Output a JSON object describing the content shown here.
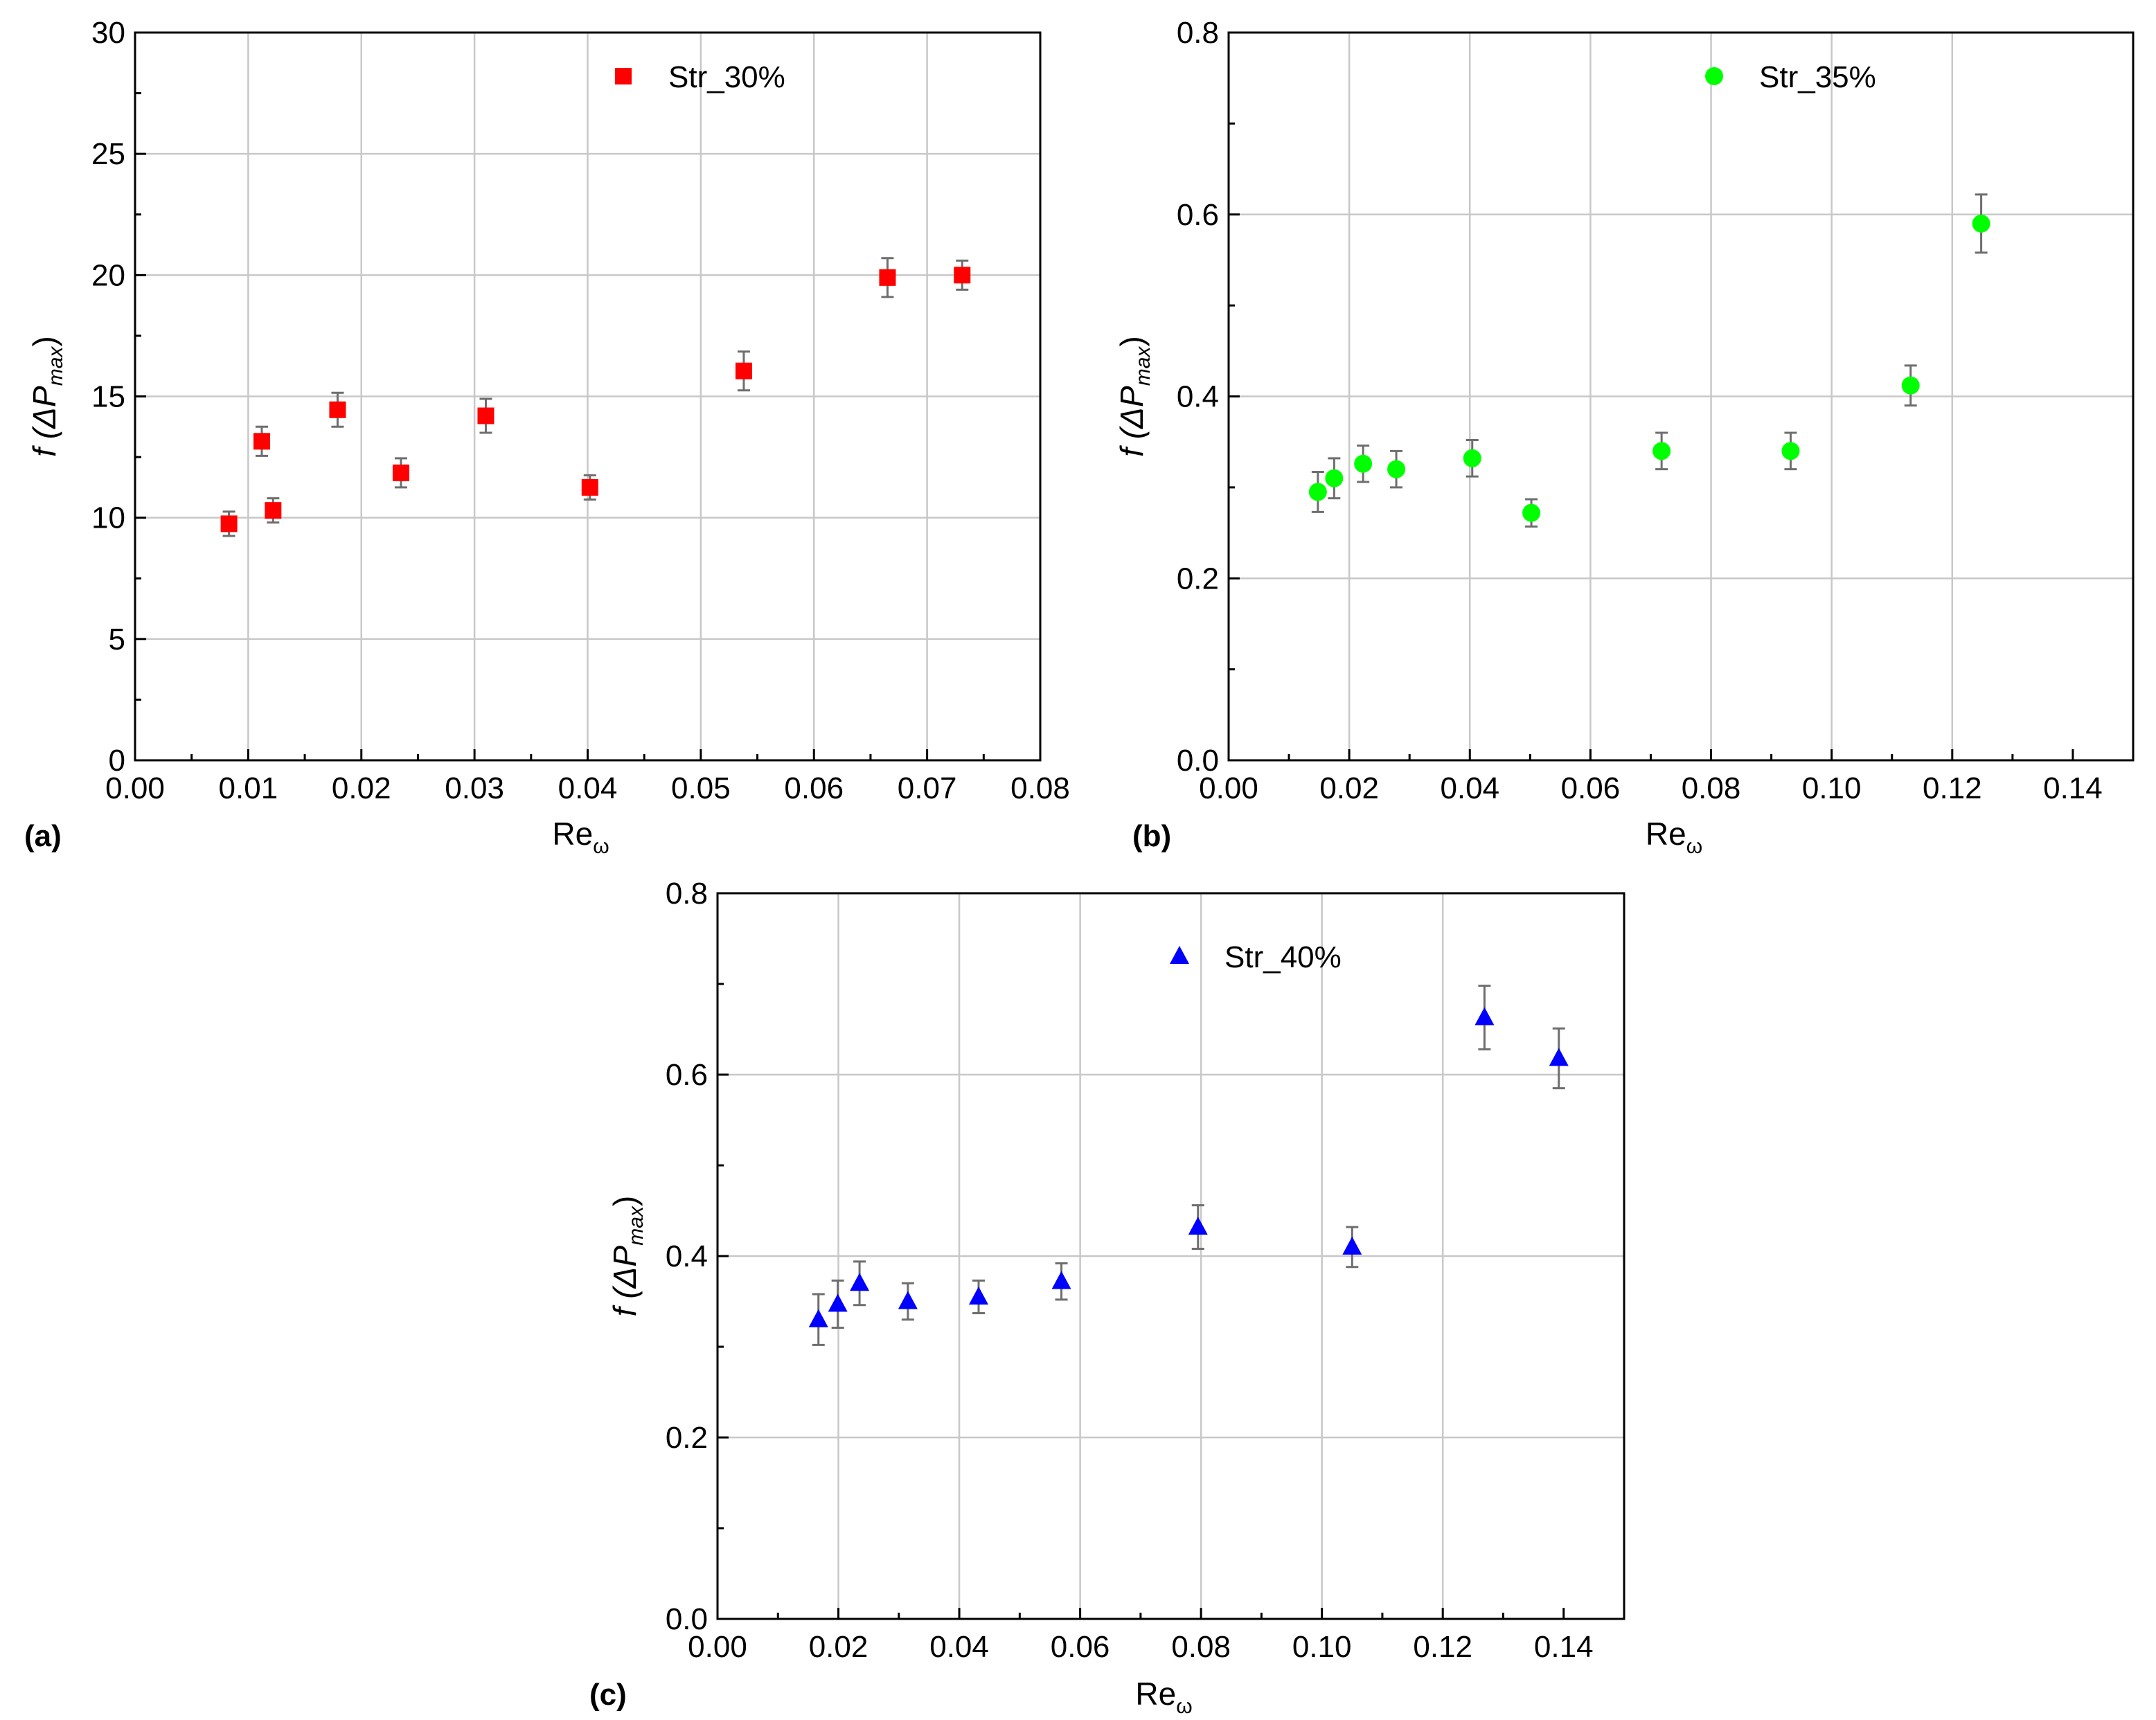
{
  "chart_data": [
    {
      "type": "scatter",
      "panel_label": "(a)",
      "xlabel": "Re",
      "xlabel_sub": "ω",
      "ylabel": "f (ΔP",
      "ylabel_sub": "max",
      "ylabel_close": ")",
      "xlim": [
        0,
        0.08
      ],
      "ylim": [
        0,
        30
      ],
      "xticks": [
        "0.00",
        "0.01",
        "0.02",
        "0.03",
        "0.04",
        "0.05",
        "0.06",
        "0.07",
        "0.08"
      ],
      "yticks": [
        "0",
        "5",
        "10",
        "15",
        "20",
        "25",
        "30"
      ],
      "grid": true,
      "legend_position": "top-center",
      "series": [
        {
          "name": "Str_30%",
          "marker": "square",
          "color": "#ff0000",
          "x": [
            0.0083,
            0.0112,
            0.0122,
            0.0179,
            0.0235,
            0.031,
            0.0402,
            0.0538,
            0.0665,
            0.0731
          ],
          "y": [
            9.75,
            13.15,
            10.3,
            14.45,
            11.85,
            14.2,
            11.25,
            16.05,
            19.9,
            20.0
          ],
          "err": [
            0.5,
            0.6,
            0.5,
            0.7,
            0.6,
            0.7,
            0.5,
            0.8,
            0.8,
            0.6
          ]
        }
      ]
    },
    {
      "type": "scatter",
      "panel_label": "(b)",
      "xlabel": "Re",
      "xlabel_sub": "ω",
      "ylabel": "f (ΔP",
      "ylabel_sub": "max",
      "ylabel_close": ")",
      "xlim": [
        0,
        0.15
      ],
      "ylim": [
        0,
        0.8
      ],
      "xticks": [
        "0.00",
        "0.02",
        "0.04",
        "0.06",
        "0.08",
        "0.10",
        "0.12",
        "0.14"
      ],
      "yticks": [
        "0.0",
        "0.2",
        "0.4",
        "0.6",
        "0.8"
      ],
      "grid": true,
      "legend_position": "top-center",
      "series": [
        {
          "name": "Str_35%",
          "marker": "circle",
          "color": "#00ff00",
          "x": [
            0.0148,
            0.0175,
            0.0223,
            0.0278,
            0.0404,
            0.0502,
            0.0718,
            0.0932,
            0.1131,
            0.1248
          ],
          "y": [
            0.295,
            0.31,
            0.326,
            0.32,
            0.332,
            0.272,
            0.34,
            0.34,
            0.412,
            0.59
          ],
          "err": [
            0.022,
            0.022,
            0.02,
            0.02,
            0.02,
            0.015,
            0.02,
            0.02,
            0.022,
            0.032
          ]
        }
      ]
    },
    {
      "type": "scatter",
      "panel_label": "(c)",
      "xlabel": "Re",
      "xlabel_sub": "ω",
      "ylabel": "f (ΔP",
      "ylabel_sub": "max",
      "ylabel_close": ")",
      "xlim": [
        0,
        0.15
      ],
      "ylim": [
        0,
        0.8
      ],
      "xticks": [
        "0.00",
        "0.02",
        "0.04",
        "0.06",
        "0.08",
        "0.10",
        "0.12",
        "0.14"
      ],
      "yticks": [
        "0.0",
        "0.2",
        "0.4",
        "0.6",
        "0.8"
      ],
      "grid": true,
      "legend_position": "top-center",
      "series": [
        {
          "name": "Str_40%",
          "marker": "triangle",
          "color": "#0000ff",
          "x": [
            0.0167,
            0.0199,
            0.0235,
            0.0315,
            0.0432,
            0.0569,
            0.0795,
            0.105,
            0.1269,
            0.1392
          ],
          "y": [
            0.33,
            0.347,
            0.37,
            0.35,
            0.355,
            0.372,
            0.432,
            0.41,
            0.663,
            0.618
          ],
          "err": [
            0.028,
            0.026,
            0.024,
            0.02,
            0.018,
            0.02,
            0.024,
            0.022,
            0.035,
            0.033
          ]
        }
      ]
    }
  ]
}
